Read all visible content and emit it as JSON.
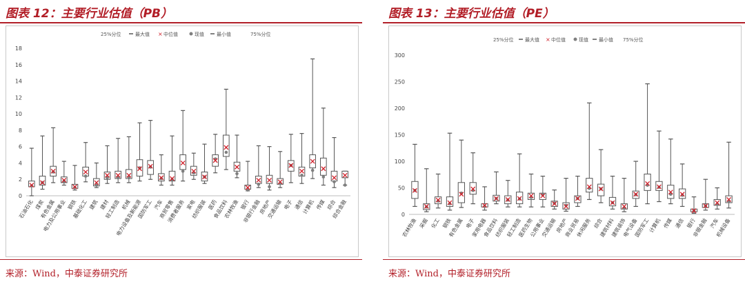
{
  "left": {
    "title": "图表 12：主要行业估值（PB）",
    "source": "来源：Wind，中泰证券研究所",
    "legend": {
      "q25": "25%分位",
      "max": "最大值",
      "median": "中位值",
      "current": "现值",
      "min": "最小值",
      "q75": "75%分位"
    }
  },
  "right": {
    "title": "图表 13：主要行业估值（PE）",
    "source": "来源：Wind，中泰证券研究所",
    "legend": {
      "q25": "25%分位",
      "max": "最大值",
      "median": "中位值",
      "current": "现值",
      "min": "最小值",
      "q75": "75%分位"
    }
  },
  "colors": {
    "accent": "#b21e27",
    "median": "#d0202a",
    "current": "#7f7f7f",
    "box": "#555555"
  },
  "chart_data": [
    {
      "type": "box",
      "ylim": [
        0,
        18
      ],
      "yticks": [
        0,
        2,
        4,
        6,
        8,
        10,
        12,
        14,
        16,
        18
      ],
      "grid": false,
      "legend_position": "top",
      "categories": [
        "石油石化",
        "煤炭",
        "有色金属",
        "电力及公用事业",
        "钢铁",
        "基础化工",
        "建筑",
        "建材",
        "轻工制造",
        "机械",
        "电力设备及新能源",
        "国防军工",
        "汽车",
        "商贸零售",
        "消费者服务",
        "家电",
        "纺织服装",
        "医药",
        "食品饮料",
        "农林牧渔",
        "银行",
        "非银行金融",
        "房地产",
        "交通运输",
        "电子",
        "通信",
        "计算机",
        "传媒",
        "综合",
        "综合金融"
      ],
      "min": [
        0.0,
        0.8,
        1.6,
        1.3,
        0.7,
        1.7,
        1.0,
        1.5,
        1.6,
        1.6,
        1.8,
        2.0,
        1.3,
        1.3,
        1.8,
        2.0,
        1.5,
        2.8,
        3.2,
        2.2,
        0.6,
        1.0,
        0.7,
        1.0,
        1.6,
        1.5,
        2.1,
        1.3,
        1.0,
        1.3
      ],
      "q25": [
        1.1,
        1.3,
        2.4,
        1.6,
        0.9,
        2.4,
        1.2,
        2.0,
        2.1,
        2.1,
        2.4,
        2.6,
        1.8,
        1.8,
        3.2,
        2.5,
        1.8,
        3.6,
        4.8,
        3.0,
        0.8,
        1.5,
        1.5,
        1.4,
        3.0,
        2.4,
        3.4,
        2.5,
        1.8,
        2.2
      ],
      "median": [
        1.3,
        1.6,
        3.0,
        1.9,
        1.1,
        2.9,
        1.6,
        2.5,
        2.5,
        2.5,
        3.3,
        3.6,
        2.2,
        2.1,
        4.0,
        3.0,
        2.3,
        4.3,
        5.9,
        3.5,
        1.0,
        1.9,
        1.9,
        1.7,
        3.7,
        3.0,
        4.2,
        3.3,
        2.2,
        2.5
      ],
      "q75": [
        1.8,
        2.4,
        3.6,
        2.3,
        1.4,
        3.5,
        2.1,
        2.9,
        3.0,
        3.2,
        4.4,
        4.3,
        2.7,
        3.0,
        5.0,
        3.6,
        2.9,
        5.0,
        7.4,
        4.1,
        1.3,
        2.4,
        2.5,
        2.1,
        4.3,
        3.5,
        5.0,
        4.6,
        3.0,
        3.0
      ],
      "max": [
        5.8,
        7.3,
        8.3,
        4.2,
        3.7,
        6.5,
        4.0,
        6.1,
        7.0,
        7.2,
        8.9,
        9.2,
        5.0,
        7.3,
        10.4,
        5.2,
        6.3,
        7.5,
        13.0,
        7.4,
        4.2,
        6.1,
        6.0,
        5.4,
        7.5,
        7.6,
        16.7,
        10.7,
        7.1,
        3.0
      ],
      "current": [
        1.2,
        1.6,
        2.9,
        1.8,
        1.0,
        2.4,
        1.3,
        2.2,
        2.2,
        2.3,
        3.4,
        3.5,
        2.1,
        2.0,
        3.0,
        2.8,
        2.3,
        4.5,
        5.3,
        2.7,
        0.7,
        1.4,
        1.1,
        1.5,
        3.7,
        2.5,
        3.1,
        2.3,
        1.7,
        1.3
      ]
    },
    {
      "type": "box",
      "ylim": [
        0,
        300
      ],
      "yticks": [
        0,
        50,
        100,
        150,
        200,
        250,
        300
      ],
      "grid": false,
      "legend_position": "top",
      "categories": [
        "农林牧渔",
        "采掘",
        "化工",
        "钢铁",
        "有色金属",
        "电子",
        "家用电器",
        "食品饮料",
        "纺织服装",
        "轻工制造",
        "医药生物",
        "公用事业",
        "交通运输",
        "房地产",
        "商业贸易",
        "休闲服务",
        "综合",
        "建筑材料",
        "建筑装饰",
        "电气设备",
        "国防军工",
        "计算机",
        "传媒",
        "通信",
        "银行",
        "非银金融",
        "汽车",
        "机械设备"
      ],
      "min": [
        15,
        5,
        12,
        8,
        13,
        20,
        8,
        20,
        14,
        14,
        14,
        14,
        10,
        6,
        15,
        28,
        22,
        10,
        5,
        15,
        20,
        24,
        20,
        15,
        2,
        8,
        10,
        12
      ],
      "q25": [
        30,
        9,
        20,
        15,
        22,
        38,
        14,
        25,
        20,
        20,
        28,
        28,
        15,
        10,
        22,
        42,
        35,
        16,
        10,
        30,
        45,
        45,
        30,
        30,
        5,
        13,
        17,
        22
      ],
      "median": [
        45,
        15,
        27,
        22,
        38,
        48,
        17,
        30,
        28,
        30,
        35,
        35,
        20,
        15,
        30,
        52,
        48,
        22,
        15,
        38,
        58,
        52,
        42,
        38,
        7,
        16,
        22,
        28
      ],
      "q75": [
        62,
        20,
        33,
        33,
        60,
        60,
        20,
        36,
        35,
        42,
        40,
        40,
        25,
        22,
        35,
        68,
        57,
        32,
        20,
        44,
        76,
        62,
        55,
        48,
        10,
        20,
        28,
        35
      ],
      "max": [
        132,
        86,
        76,
        153,
        140,
        116,
        52,
        80,
        64,
        114,
        76,
        72,
        46,
        68,
        72,
        210,
        122,
        72,
        68,
        100,
        246,
        157,
        142,
        95,
        33,
        66,
        50,
        136
      ],
      "current": [
        45,
        14,
        25,
        20,
        40,
        45,
        15,
        30,
        27,
        29,
        32,
        37,
        21,
        17,
        30,
        49,
        48,
        22,
        12,
        37,
        55,
        51,
        38,
        36,
        6,
        16,
        19,
        24
      ]
    }
  ]
}
